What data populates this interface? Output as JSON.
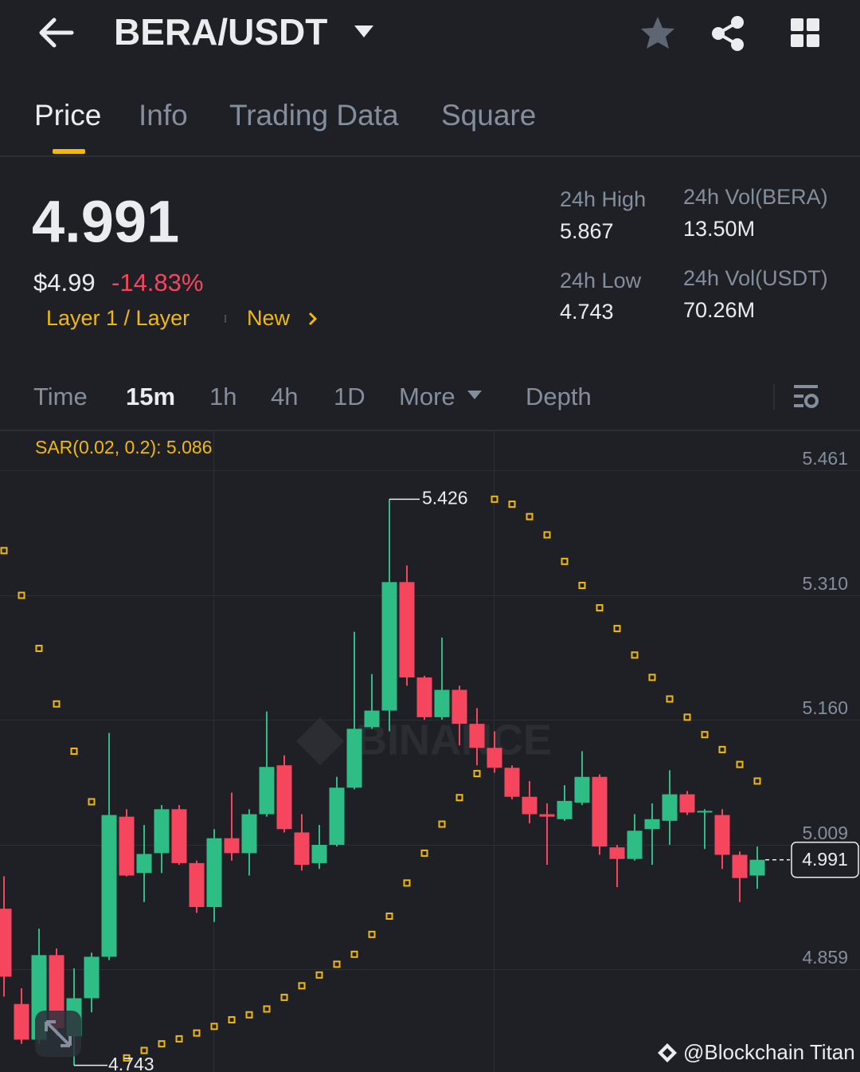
{
  "header": {
    "pair": "BERA/USDT"
  },
  "tabs": [
    "Price",
    "Info",
    "Trading Data",
    "Square"
  ],
  "price": {
    "last": "4.991",
    "usd": "$4.99",
    "change": "-14.83%",
    "tags": [
      "Layer 1 / Layer",
      "New"
    ]
  },
  "stats": [
    {
      "label": "24h High",
      "value": "5.867"
    },
    {
      "label": "24h Low",
      "value": "4.743"
    },
    {
      "label": "24h Vol(BERA)",
      "value": "13.50M"
    },
    {
      "label": "24h Vol(USDT)",
      "value": "70.26M"
    }
  ],
  "intervals": [
    "Time",
    "15m",
    "1h",
    "4h",
    "1D",
    "More",
    "Depth"
  ],
  "watermark": "BINANCE",
  "credit": "@Blockchain Titan",
  "chart_data": {
    "type": "candlestick",
    "indicator_label": "SAR(0.02, 0.2): 5.086",
    "up_color": "#2ebd85",
    "down_color": "#f6465d",
    "sar_color": "#f0b90b",
    "open": [
      4.932,
      4.817,
      4.774,
      4.876,
      4.778,
      4.824,
      4.874,
      5.043,
      4.975,
      4.999,
      5.052,
      4.987,
      4.934,
      5.017,
      4.999,
      5.046,
      5.105,
      5.024,
      4.987,
      5.009,
      5.078,
      5.151,
      5.171,
      5.326,
      5.211,
      5.163,
      5.196,
      5.155,
      5.126,
      5.102,
      5.067,
      5.046,
      5.04,
      5.06,
      5.091,
      5.006,
      4.992,
      5.028,
      5.038,
      5.07,
      5.048,
      5.045,
      4.997,
      4.972
    ],
    "high": [
      4.971,
      4.836,
      4.908,
      4.884,
      4.86,
      4.879,
      5.144,
      5.052,
      5.033,
      5.057,
      5.057,
      4.99,
      5.028,
      5.072,
      5.052,
      5.17,
      5.117,
      5.046,
      5.033,
      5.091,
      5.266,
      5.215,
      5.426,
      5.346,
      5.213,
      5.259,
      5.201,
      5.174,
      5.146,
      5.105,
      5.086,
      5.059,
      5.081,
      5.122,
      5.094,
      5.009,
      5.046,
      5.059,
      5.099,
      5.074,
      5.052,
      5.052,
      5.001,
      5.007
    ],
    "low": [
      4.826,
      4.769,
      4.769,
      4.778,
      4.743,
      4.807,
      4.87,
      4.971,
      4.94,
      4.975,
      4.985,
      4.927,
      4.916,
      4.99,
      4.972,
      5.043,
      5.024,
      4.978,
      4.98,
      5.007,
      5.076,
      5.149,
      5.146,
      5.201,
      5.16,
      5.16,
      5.129,
      5.105,
      5.096,
      5.064,
      5.035,
      4.985,
      5.038,
      5.057,
      4.997,
      4.958,
      4.99,
      4.985,
      5.009,
      5.045,
      5.004,
      4.98,
      4.94,
      4.956
    ],
    "close": [
      4.85,
      4.774,
      4.876,
      4.788,
      4.824,
      4.874,
      5.045,
      4.972,
      4.998,
      5.052,
      4.987,
      4.934,
      5.017,
      4.999,
      5.046,
      5.103,
      5.028,
      4.985,
      5.009,
      5.078,
      5.149,
      5.171,
      5.326,
      5.211,
      5.163,
      5.196,
      5.155,
      5.126,
      5.102,
      5.067,
      5.046,
      5.043,
      5.062,
      5.091,
      5.007,
      4.992,
      5.026,
      5.04,
      5.07,
      5.048,
      5.05,
      4.997,
      4.969,
      4.991
    ],
    "sar": [
      5.364,
      5.31,
      5.246,
      5.179,
      5.122,
      5.061,
      null,
      4.752,
      4.761,
      4.769,
      4.775,
      4.782,
      4.79,
      4.798,
      4.804,
      4.811,
      4.825,
      4.839,
      4.852,
      4.865,
      4.877,
      4.901,
      4.923,
      4.963,
      4.999,
      5.034,
      5.066,
      5.095,
      5.426,
      5.42,
      5.405,
      5.383,
      5.351,
      5.322,
      5.295,
      5.27,
      5.238,
      5.211,
      5.185,
      5.163,
      5.142,
      5.124,
      5.106,
      5.086
    ],
    "ylim": [
      4.735,
      5.509
    ],
    "yticks": [
      5.461,
      {
        "value": 5.31,
        "label": "5.310"
      },
      {
        "value": 5.16,
        "label": "5.160"
      },
      5.009,
      4.859
    ],
    "grid": true
  }
}
